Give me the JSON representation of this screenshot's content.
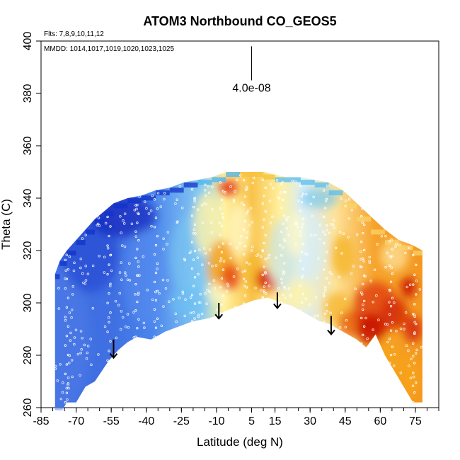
{
  "chart_data": {
    "type": "heatmap",
    "title": "ATOM3 Northbound CO_GEOS5",
    "xlabel": "Latitude (deg N)",
    "ylabel": "Theta (C)",
    "xlim": [
      -85,
      85
    ],
    "ylim": [
      260,
      400
    ],
    "x_ticks": [
      -85,
      -70,
      -55,
      -40,
      -25,
      -10,
      5,
      15,
      30,
      45,
      60,
      75
    ],
    "x_tick_labels": [
      "-85",
      "-70",
      "-55",
      "-40",
      "-25",
      "-10",
      "5",
      "15",
      "30",
      "45",
      "60",
      "75"
    ],
    "y_ticks": [
      260,
      280,
      300,
      320,
      340,
      360,
      380,
      400
    ],
    "y_tick_labels": [
      "260",
      "280",
      "300",
      "320",
      "340",
      "360",
      "380",
      "400"
    ],
    "flights_note": "Flts: 7,8,9,10,11,12",
    "dates_note": "MMDD: 1014,1017,1019,1020,1023,1025",
    "scale_label": "4.0e-08",
    "scale_bar": {
      "x": 5,
      "y_top": 398,
      "y_bottom": 385
    },
    "arrows": [
      {
        "x": -54,
        "y_top": 286,
        "y_bottom": 279
      },
      {
        "x": -9,
        "y_top": 300,
        "y_bottom": 294
      },
      {
        "x": 16,
        "y_top": 304,
        "y_bottom": 298
      },
      {
        "x": 39,
        "y_top": 295,
        "y_bottom": 288
      }
    ],
    "envelope_top": [
      [
        -79,
        311
      ],
      [
        -77,
        316
      ],
      [
        -74,
        320
      ],
      [
        -70,
        324
      ],
      [
        -66,
        328
      ],
      [
        -62,
        332
      ],
      [
        -58,
        335
      ],
      [
        -54,
        338
      ],
      [
        -48,
        340
      ],
      [
        -42,
        341
      ],
      [
        -36,
        343
      ],
      [
        -30,
        344
      ],
      [
        -24,
        346
      ],
      [
        -18,
        347
      ],
      [
        -12,
        348
      ],
      [
        -6,
        350
      ],
      [
        0,
        350
      ],
      [
        5,
        350
      ],
      [
        10,
        350
      ],
      [
        15,
        349
      ],
      [
        20,
        348
      ],
      [
        26,
        348
      ],
      [
        32,
        347
      ],
      [
        38,
        346
      ],
      [
        44,
        343
      ],
      [
        50,
        338
      ],
      [
        56,
        333
      ],
      [
        62,
        328
      ],
      [
        68,
        324
      ],
      [
        74,
        322
      ],
      [
        78,
        320
      ]
    ],
    "envelope_bottom": [
      [
        78,
        262
      ],
      [
        74,
        262
      ],
      [
        70,
        268
      ],
      [
        66,
        274
      ],
      [
        62,
        280
      ],
      [
        58,
        288
      ],
      [
        54,
        283
      ],
      [
        50,
        286
      ],
      [
        46,
        288
      ],
      [
        42,
        290
      ],
      [
        38,
        292
      ],
      [
        34,
        293
      ],
      [
        30,
        295
      ],
      [
        26,
        297
      ],
      [
        22,
        299
      ],
      [
        18,
        300
      ],
      [
        12,
        302
      ],
      [
        6,
        301
      ],
      [
        0,
        299
      ],
      [
        -6,
        297
      ],
      [
        -10,
        295
      ],
      [
        -14,
        294
      ],
      [
        -20,
        293
      ],
      [
        -26,
        291
      ],
      [
        -32,
        289
      ],
      [
        -38,
        286
      ],
      [
        -44,
        287
      ],
      [
        -48,
        285
      ],
      [
        -52,
        282
      ],
      [
        -56,
        278
      ],
      [
        -62,
        270
      ],
      [
        -66,
        268
      ],
      [
        -70,
        262
      ],
      [
        -74,
        262
      ],
      [
        -76,
        259
      ],
      [
        -79,
        259
      ]
    ],
    "blobs": [
      {
        "x": -78,
        "y": 285,
        "rx": 14,
        "ry": 28,
        "color": "#4f7be8",
        "opacity": 0.55
      },
      {
        "x": -64,
        "y": 318,
        "rx": 12,
        "ry": 14,
        "color": "#1d3fd0",
        "opacity": 0.55
      },
      {
        "x": -50,
        "y": 333,
        "rx": 14,
        "ry": 8,
        "color": "#0a1fb8",
        "opacity": 0.65
      },
      {
        "x": -40,
        "y": 310,
        "rx": 10,
        "ry": 18,
        "color": "#5b8ff0",
        "opacity": 0.45
      },
      {
        "x": -20,
        "y": 318,
        "rx": 10,
        "ry": 16,
        "color": "#7ac8f2",
        "opacity": 0.55
      },
      {
        "x": -22,
        "y": 300,
        "rx": 8,
        "ry": 6,
        "color": "#6cc2f4",
        "opacity": 0.6
      },
      {
        "x": -14,
        "y": 330,
        "rx": 6,
        "ry": 12,
        "color": "#fff3a8",
        "opacity": 0.8
      },
      {
        "x": -8,
        "y": 314,
        "rx": 6,
        "ry": 10,
        "color": "#f5a623",
        "opacity": 0.9
      },
      {
        "x": -4,
        "y": 310,
        "rx": 4,
        "ry": 5,
        "color": "#e84a10",
        "opacity": 0.85
      },
      {
        "x": -5,
        "y": 344,
        "rx": 4,
        "ry": 3,
        "color": "#e03010",
        "opacity": 0.85
      },
      {
        "x": 0,
        "y": 328,
        "rx": 5,
        "ry": 10,
        "color": "#fff9c8",
        "opacity": 0.7
      },
      {
        "x": 6,
        "y": 312,
        "rx": 4,
        "ry": 8,
        "color": "#f6b730",
        "opacity": 0.85
      },
      {
        "x": 10,
        "y": 309,
        "rx": 3,
        "ry": 4,
        "color": "#d41a00",
        "opacity": 0.9
      },
      {
        "x": 14,
        "y": 307,
        "rx": 2,
        "ry": 3,
        "color": "#e84a10",
        "opacity": 0.85
      },
      {
        "x": 18,
        "y": 318,
        "rx": 6,
        "ry": 14,
        "color": "#bfe3f4",
        "opacity": 0.6
      },
      {
        "x": 24,
        "y": 326,
        "rx": 5,
        "ry": 8,
        "color": "#fff9c8",
        "opacity": 0.7
      },
      {
        "x": 26,
        "y": 303,
        "rx": 6,
        "ry": 6,
        "color": "#fff3a8",
        "opacity": 0.8
      },
      {
        "x": 32,
        "y": 322,
        "rx": 5,
        "ry": 12,
        "color": "#d5eef8",
        "opacity": 0.6
      },
      {
        "x": 44,
        "y": 318,
        "rx": 5,
        "ry": 8,
        "color": "#f6b730",
        "opacity": 0.85
      },
      {
        "x": 42,
        "y": 298,
        "rx": 6,
        "ry": 6,
        "color": "#f6b730",
        "opacity": 0.8
      },
      {
        "x": 48,
        "y": 292,
        "rx": 6,
        "ry": 5,
        "color": "#e8650f",
        "opacity": 0.85
      },
      {
        "x": 58,
        "y": 298,
        "rx": 10,
        "ry": 10,
        "color": "#e0400c",
        "opacity": 0.8
      },
      {
        "x": 56,
        "y": 290,
        "rx": 6,
        "ry": 6,
        "color": "#c81200",
        "opacity": 0.85
      },
      {
        "x": 66,
        "y": 296,
        "rx": 6,
        "ry": 6,
        "color": "#d42a08",
        "opacity": 0.8
      },
      {
        "x": 72,
        "y": 306,
        "rx": 3,
        "ry": 4,
        "color": "#c81200",
        "opacity": 0.9
      },
      {
        "x": 74,
        "y": 290,
        "rx": 4,
        "ry": 5,
        "color": "#d42a08",
        "opacity": 0.85
      },
      {
        "x": 62,
        "y": 280,
        "rx": 6,
        "ry": 6,
        "color": "#f7a21b",
        "opacity": 0.85
      },
      {
        "x": 72,
        "y": 272,
        "rx": 5,
        "ry": 8,
        "color": "#f7a21b",
        "opacity": 0.9
      },
      {
        "x": 66,
        "y": 318,
        "rx": 6,
        "ry": 6,
        "color": "#fde7a0",
        "opacity": 0.7
      },
      {
        "x": 34,
        "y": 340,
        "rx": 8,
        "ry": 4,
        "color": "#5cc0f4",
        "opacity": 0.55
      },
      {
        "x": -10,
        "y": 304,
        "rx": 4,
        "ry": 4,
        "color": "#fff9c8",
        "opacity": 0.7
      }
    ]
  }
}
